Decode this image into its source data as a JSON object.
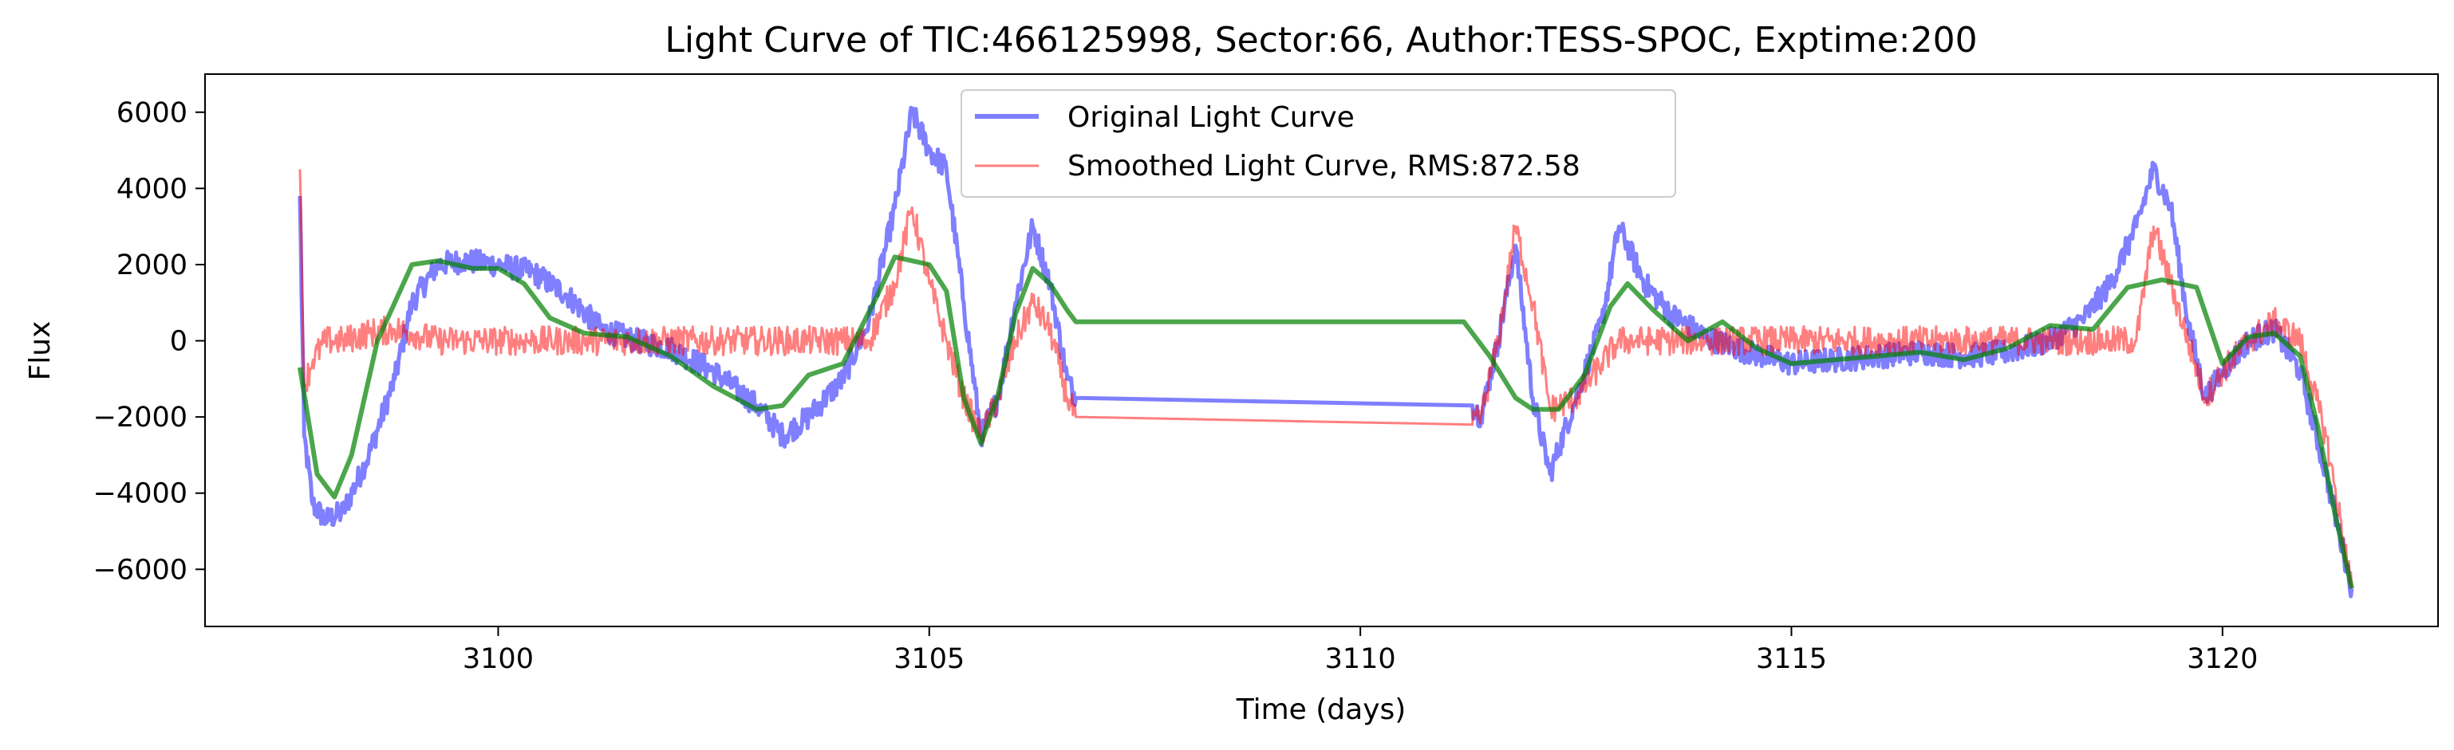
{
  "chart_data": {
    "type": "line",
    "title": "Light Curve of TIC:466125998, Sector:66, Author:TESS-SPOC, Exptime:200",
    "xlabel": "Time (days)",
    "ylabel": "Flux",
    "xlim": [
      3096.6,
      3122.5
    ],
    "ylim": [
      -7500,
      7000
    ],
    "xticks": [
      3100,
      3105,
      3110,
      3115,
      3120
    ],
    "yticks": [
      -6000,
      -4000,
      -2000,
      0,
      2000,
      4000,
      6000
    ],
    "ytick_labels": [
      "−6000",
      "−4000",
      "−2000",
      "0",
      "2000",
      "4000",
      "6000"
    ],
    "grid": false,
    "legend": {
      "placement": "top-center"
    },
    "series": [
      {
        "name": "Original Light Curve",
        "color": "#0000ff",
        "alpha": 0.5,
        "noise": 320,
        "x": [
          3097.7,
          3097.75,
          3097.85,
          3098.0,
          3098.2,
          3098.5,
          3098.8,
          3099.0,
          3099.3,
          3099.6,
          3100.0,
          3100.4,
          3100.8,
          3101.2,
          3101.6,
          3102.0,
          3102.5,
          3103.0,
          3103.3,
          3103.6,
          3104.0,
          3104.3,
          3104.6,
          3104.8,
          3105.0,
          3105.2,
          3105.4,
          3105.6,
          3105.8,
          3106.0,
          3106.2,
          3106.4,
          3106.6,
          3106.7,
          3111.3,
          3111.4,
          3111.6,
          3111.8,
          3112.0,
          3112.2,
          3112.5,
          3112.8,
          3113.0,
          3113.3,
          3113.6,
          3114.0,
          3114.5,
          3115.0,
          3115.5,
          3116.0,
          3116.5,
          3117.0,
          3117.5,
          3118.0,
          3118.4,
          3118.7,
          3119.0,
          3119.2,
          3119.4,
          3119.6,
          3119.8,
          3120.0,
          3120.3,
          3120.6,
          3120.9,
          3121.2,
          3121.5
        ],
        "y": [
          3800,
          -2500,
          -4300,
          -4700,
          -4500,
          -3000,
          -1000,
          1000,
          2000,
          2100,
          2000,
          1800,
          1200,
          300,
          0,
          -200,
          -800,
          -1700,
          -2500,
          -2000,
          -1000,
          500,
          3500,
          6000,
          5000,
          4500,
          1000,
          -2500,
          -1500,
          1000,
          3000,
          1500,
          -1000,
          -1500,
          -1700,
          -2000,
          0,
          2500,
          -1500,
          -3500,
          -1500,
          500,
          3000,
          1500,
          700,
          100,
          -300,
          -600,
          -500,
          -400,
          -300,
          -400,
          -300,
          0,
          600,
          1500,
          3000,
          4500,
          3500,
          500,
          -1500,
          -800,
          0,
          300,
          -800,
          -3500,
          -6500
        ]
      },
      {
        "name": "Smoothed Light Curve, RMS:872.58",
        "color": "#ff0000",
        "alpha": 0.5,
        "noise": 380,
        "x": [
          3097.7,
          3097.75,
          3097.85,
          3098.0,
          3098.2,
          3098.5,
          3098.8,
          3099.0,
          3099.3,
          3099.6,
          3100.0,
          3100.4,
          3100.8,
          3101.2,
          3101.6,
          3102.0,
          3102.5,
          3103.0,
          3103.3,
          3103.6,
          3104.0,
          3104.3,
          3104.6,
          3104.8,
          3105.0,
          3105.2,
          3105.4,
          3105.6,
          3105.8,
          3106.0,
          3106.2,
          3106.4,
          3106.6,
          3106.7,
          3111.3,
          3111.4,
          3111.6,
          3111.8,
          3112.0,
          3112.2,
          3112.5,
          3112.8,
          3113.0,
          3113.3,
          3113.6,
          3114.0,
          3114.5,
          3115.0,
          3115.5,
          3116.0,
          3116.5,
          3117.0,
          3117.5,
          3118.0,
          3118.4,
          3118.7,
          3119.0,
          3119.2,
          3119.4,
          3119.6,
          3119.8,
          3120.0,
          3120.3,
          3120.6,
          3120.9,
          3121.2,
          3121.5
        ],
        "y": [
          4500,
          -1200,
          -500,
          0,
          0,
          200,
          300,
          200,
          0,
          0,
          0,
          0,
          0,
          0,
          0,
          0,
          0,
          0,
          0,
          0,
          0,
          0,
          1500,
          3500,
          1500,
          0,
          -1500,
          -2500,
          -1500,
          0,
          1000,
          300,
          -1500,
          -2000,
          -2200,
          -2000,
          0,
          3000,
          1000,
          -1800,
          -1500,
          -600,
          0,
          0,
          0,
          0,
          0,
          0,
          0,
          0,
          0,
          0,
          0,
          0,
          0,
          0,
          0,
          3000,
          1500,
          0,
          -1500,
          -800,
          0,
          500,
          0,
          -2500,
          -6500
        ]
      },
      {
        "name": "",
        "color": "#008000",
        "alpha": 0.7,
        "noise": 0,
        "x": [
          3097.7,
          3097.9,
          3098.1,
          3098.3,
          3098.6,
          3099.0,
          3099.3,
          3099.7,
          3100.0,
          3100.3,
          3100.6,
          3101.0,
          3101.5,
          3102.0,
          3102.5,
          3103.0,
          3103.3,
          3103.6,
          3104.0,
          3104.4,
          3104.6,
          3104.8,
          3105.0,
          3105.2,
          3105.4,
          3105.6,
          3105.8,
          3106.0,
          3106.2,
          3106.4,
          3106.6,
          3106.7,
          3111.2,
          3111.5,
          3111.8,
          3112.0,
          3112.3,
          3112.6,
          3112.9,
          3113.1,
          3113.4,
          3113.8,
          3114.2,
          3114.6,
          3115.0,
          3115.5,
          3116.0,
          3116.5,
          3117.0,
          3117.5,
          3118.0,
          3118.5,
          3118.9,
          3119.3,
          3119.7,
          3120.0,
          3120.3,
          3120.6,
          3120.9,
          3121.1,
          3121.3,
          3121.5
        ],
        "y": [
          -700,
          -3500,
          -4100,
          -3000,
          0,
          2000,
          2100,
          1900,
          1900,
          1500,
          600,
          200,
          100,
          -400,
          -1200,
          -1800,
          -1700,
          -900,
          -600,
          1200,
          2200,
          2100,
          2000,
          1300,
          -1500,
          -2700,
          -1400,
          700,
          1900,
          1500,
          800,
          500,
          500,
          -400,
          -1500,
          -1800,
          -1800,
          -900,
          900,
          1500,
          800,
          0,
          500,
          -200,
          -600,
          -500,
          -400,
          -300,
          -500,
          -200,
          400,
          300,
          1400,
          1600,
          1400,
          -600,
          100,
          200,
          -400,
          -2200,
          -4500,
          -6500
        ]
      }
    ]
  }
}
